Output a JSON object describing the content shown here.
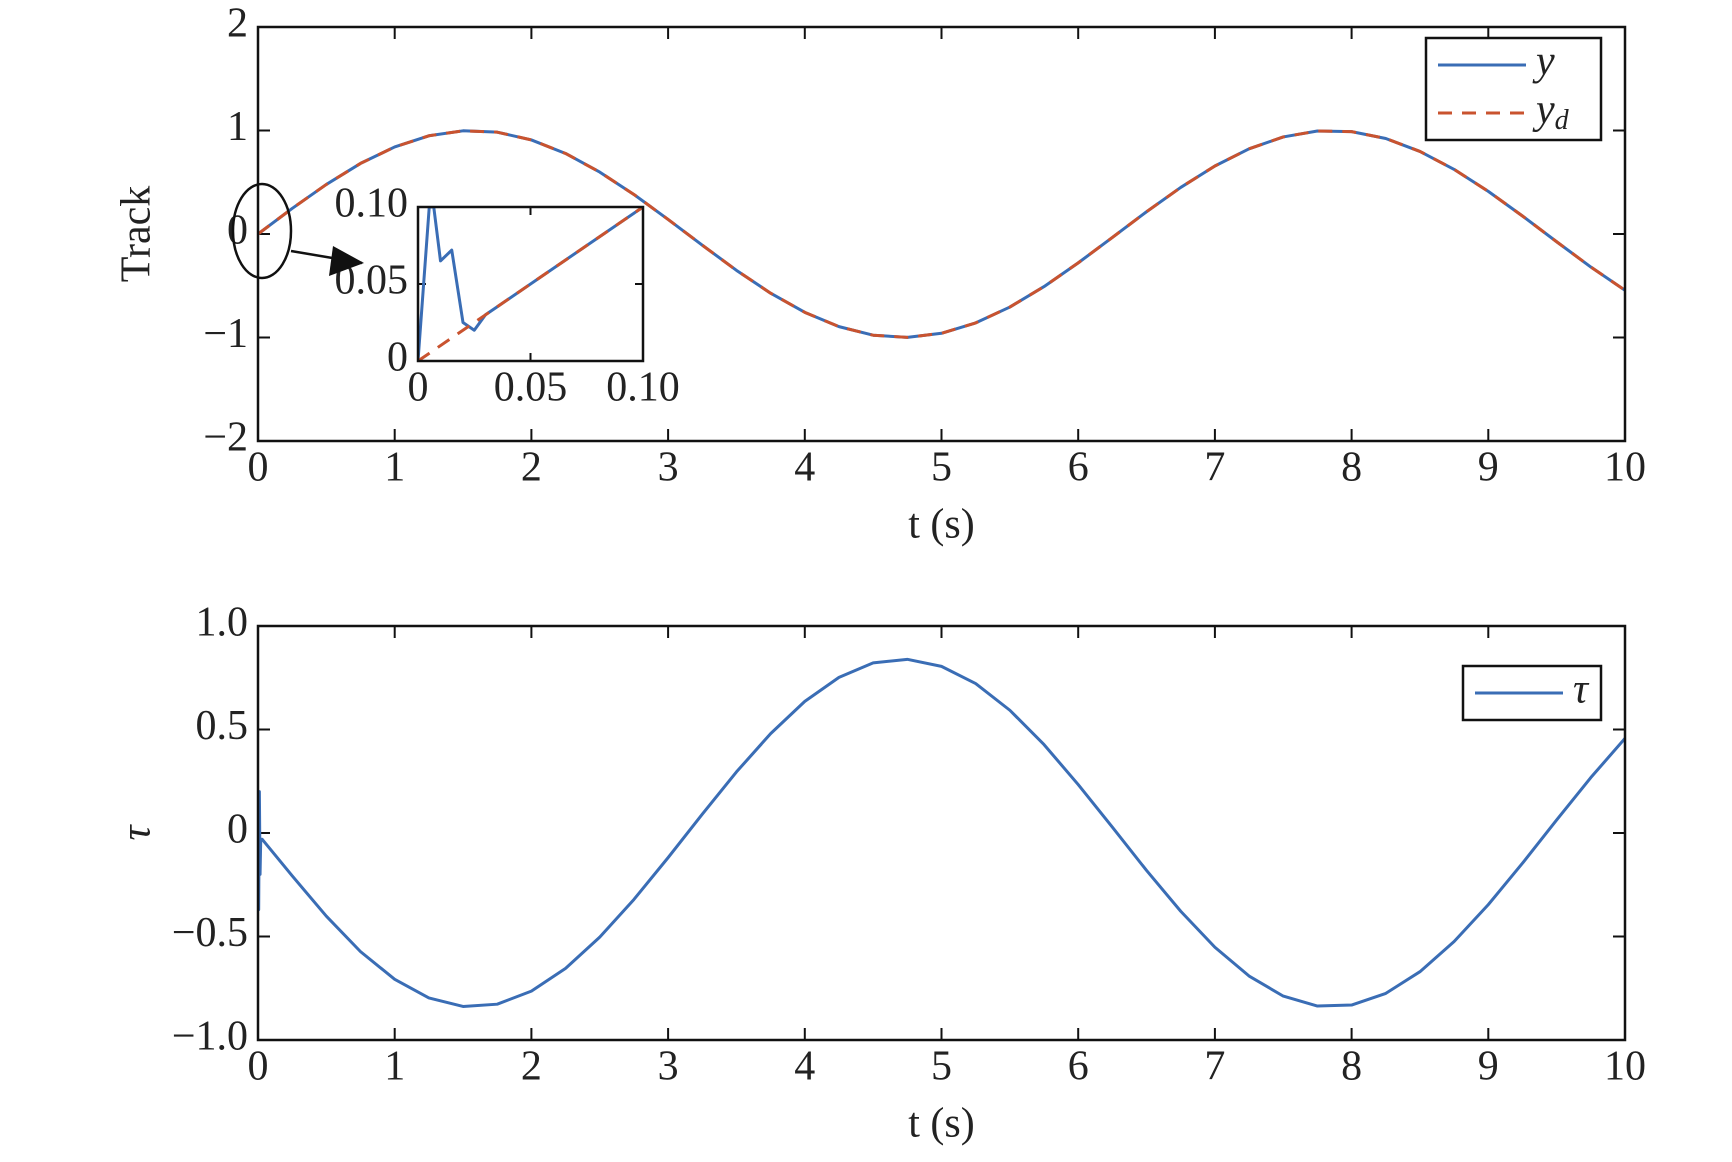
{
  "chart_data": [
    {
      "type": "line",
      "xlabel": "t (s)",
      "ylabel": "Track",
      "x": [
        0,
        0.25,
        0.5,
        0.75,
        1,
        1.25,
        1.5,
        1.75,
        2,
        2.25,
        2.5,
        2.75,
        3,
        3.25,
        3.5,
        3.75,
        4,
        4.25,
        4.5,
        4.75,
        5,
        5.25,
        5.5,
        5.75,
        6,
        6.25,
        6.5,
        6.75,
        7,
        7.25,
        7.5,
        7.75,
        8,
        8.25,
        8.5,
        8.75,
        9,
        9.25,
        9.5,
        9.75,
        10
      ],
      "series": [
        {
          "name": "y",
          "color": "#3a6db5",
          "linestyle": "solid",
          "values": [
            0,
            0.247,
            0.479,
            0.682,
            0.841,
            0.949,
            0.997,
            0.984,
            0.909,
            0.778,
            0.598,
            0.382,
            0.141,
            -0.108,
            -0.351,
            -0.572,
            -0.757,
            -0.895,
            -0.978,
            -0.999,
            -0.959,
            -0.859,
            -0.706,
            -0.508,
            -0.279,
            -0.033,
            0.215,
            0.45,
            0.657,
            0.823,
            0.938,
            0.995,
            0.989,
            0.923,
            0.798,
            0.624,
            0.412,
            0.174,
            -0.075,
            -0.319,
            -0.544
          ]
        },
        {
          "name": "yd",
          "color": "#c9532f",
          "linestyle": "dashed",
          "values": [
            0,
            0.247,
            0.479,
            0.682,
            0.841,
            0.949,
            0.997,
            0.984,
            0.909,
            0.778,
            0.598,
            0.382,
            0.141,
            -0.108,
            -0.351,
            -0.572,
            -0.757,
            -0.895,
            -0.978,
            -0.999,
            -0.959,
            -0.859,
            -0.706,
            -0.508,
            -0.279,
            -0.033,
            0.215,
            0.45,
            0.657,
            0.823,
            0.938,
            0.995,
            0.989,
            0.923,
            0.798,
            0.624,
            0.412,
            0.174,
            -0.075,
            -0.319,
            -0.544
          ]
        }
      ],
      "xlim": [
        0,
        10
      ],
      "xticks": [
        0,
        1,
        2,
        3,
        4,
        5,
        6,
        7,
        8,
        9,
        10
      ],
      "ylim": [
        -2,
        2
      ],
      "yticks": [
        {
          "value": -2,
          "label": "−2"
        },
        {
          "value": -1,
          "label": "−1"
        },
        0,
        1,
        2
      ],
      "legend": "upper right"
    },
    {
      "type": "line",
      "series": [
        {
          "name": "y",
          "color": "#3a6db5",
          "linestyle": "solid",
          "x": [
            0,
            0.005,
            0.007,
            0.01,
            0.015,
            0.02,
            0.025,
            0.03,
            0.035,
            0.1
          ],
          "values": [
            0,
            0.1,
            0.1,
            0.065,
            0.072,
            0.025,
            0.02,
            0.03,
            0.035,
            0.1
          ]
        },
        {
          "name": "yd",
          "color": "#c9532f",
          "linestyle": "dashed",
          "x": [
            0,
            0.1
          ],
          "values": [
            0,
            0.1
          ]
        }
      ],
      "xlim": [
        0,
        0.1
      ],
      "xticks": [
        0,
        {
          "value": 0.05,
          "label": "0.05"
        },
        {
          "value": 0.1,
          "label": "0.10"
        }
      ],
      "ylim": [
        0,
        0.1
      ],
      "yticks": [
        0,
        {
          "value": 0.05,
          "label": "0.05"
        },
        {
          "value": 0.1,
          "label": "0.10"
        }
      ]
    },
    {
      "type": "line",
      "xlabel": "t (s)",
      "ylabel": "τ",
      "x": [
        0,
        0.005,
        0.01,
        0.015,
        0.02,
        0.03,
        0.25,
        0.5,
        0.75,
        1,
        1.25,
        1.5,
        1.75,
        2,
        2.25,
        2.5,
        2.75,
        3,
        3.25,
        3.5,
        3.75,
        4,
        4.25,
        4.5,
        4.75,
        5,
        5.25,
        5.5,
        5.75,
        6,
        6.25,
        6.5,
        6.75,
        7,
        7.25,
        7.5,
        7.75,
        8,
        8.25,
        8.5,
        8.75,
        9,
        9.25,
        9.5,
        9.75,
        10
      ],
      "series": [
        {
          "name": "τ",
          "color": "#3a6db5",
          "linestyle": "solid",
          "values": [
            0.2,
            -0.37,
            0.2,
            -0.2,
            -0.03,
            -0.03,
            -0.207,
            -0.402,
            -0.573,
            -0.707,
            -0.797,
            -0.838,
            -0.827,
            -0.764,
            -0.654,
            -0.503,
            -0.321,
            -0.119,
            0.091,
            0.295,
            0.48,
            0.636,
            0.752,
            0.822,
            0.839,
            0.805,
            0.722,
            0.593,
            0.427,
            0.234,
            0.028,
            -0.181,
            -0.378,
            -0.552,
            -0.691,
            -0.788,
            -0.836,
            -0.831,
            -0.775,
            -0.67,
            -0.524,
            -0.346,
            -0.146,
            0.063,
            0.268,
            0.457
          ]
        }
      ],
      "xlim": [
        0,
        10
      ],
      "xticks": [
        0,
        1,
        2,
        3,
        4,
        5,
        6,
        7,
        8,
        9,
        10
      ],
      "ylim": [
        -1,
        1
      ],
      "yticks": [
        {
          "value": -1,
          "label": "−1.0"
        },
        {
          "value": -0.5,
          "label": "−0.5"
        },
        0,
        {
          "value": 0.5,
          "label": "0.5"
        },
        {
          "value": 1,
          "label": "1.0"
        }
      ],
      "legend": "upper right"
    }
  ]
}
